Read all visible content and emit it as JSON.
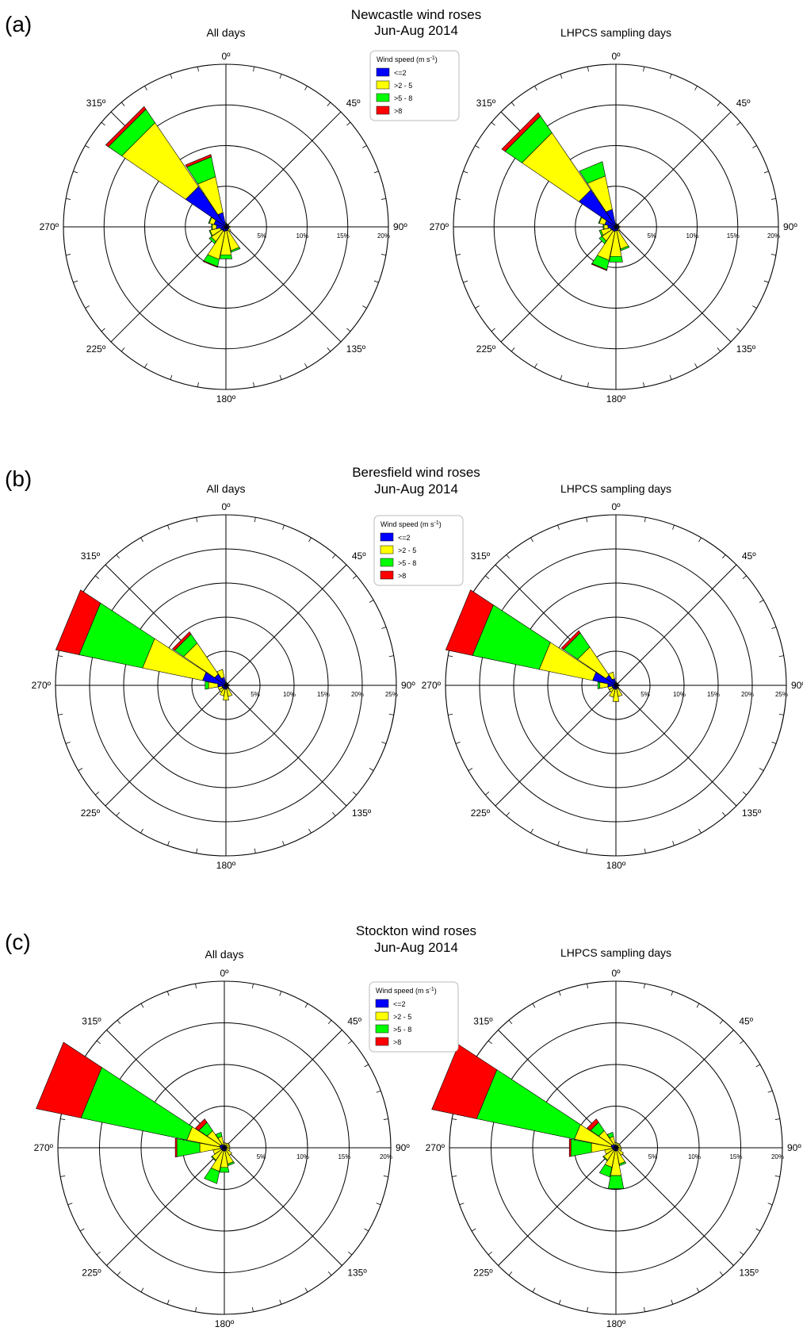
{
  "legend": {
    "title_main": "Wind speed (m s",
    "title_sup": "-1",
    "title_close": ")",
    "items": [
      {
        "label": "<=2",
        "color": "#0000ff"
      },
      {
        "label": ">2 - 5",
        "color": "#ffff00"
      },
      {
        "label": ">5 - 8",
        "color": "#00ff00"
      },
      {
        "label": ">8",
        "color": "#ff0000"
      }
    ]
  },
  "direction_labels": [
    "0º",
    "45º",
    "90º",
    "135º",
    "180º",
    "225º",
    "270º",
    "315º"
  ],
  "chart_data": [
    {
      "type": "wind-rose",
      "panel": "(a)",
      "title": "Newcastle wind roses",
      "period": "Jun-Aug 2014",
      "subtitle": "All days",
      "rings_percent": [
        5,
        10,
        15,
        20
      ],
      "ring_labels": [
        "5%",
        "10%",
        "15%",
        "20%"
      ],
      "directions_deg": [
        0,
        22.5,
        45,
        67.5,
        90,
        112.5,
        135,
        157.5,
        180,
        202.5,
        225,
        247.5,
        270,
        292.5,
        315,
        337.5
      ],
      "series": [
        {
          "name": "<=2",
          "values": [
            0.4,
            0.3,
            0.3,
            0.3,
            0.4,
            0.3,
            0.4,
            0.5,
            0.5,
            0.6,
            0.6,
            0.7,
            1.2,
            1.5,
            6.0,
            1.8
          ]
        },
        {
          "name": ">2 - 5",
          "values": [
            0.1,
            0.1,
            0.1,
            0.1,
            0.1,
            0.1,
            0.3,
            2.5,
            3.0,
            3.5,
            1.6,
            1.3,
            0.5,
            0.6,
            9.5,
            4.5
          ]
        },
        {
          "name": ">5 - 8",
          "values": [
            0.0,
            0.0,
            0.0,
            0.0,
            0.0,
            0.0,
            0.0,
            0.2,
            0.5,
            0.9,
            0.3,
            0.1,
            0.1,
            0.1,
            2.0,
            2.5
          ]
        },
        {
          "name": ">8",
          "values": [
            0.0,
            0.0,
            0.0,
            0.0,
            0.0,
            0.0,
            0.0,
            0.0,
            0.0,
            0.1,
            0.0,
            0.0,
            0.0,
            0.0,
            0.4,
            0.3
          ]
        }
      ]
    },
    {
      "type": "wind-rose",
      "panel": "(a)",
      "subtitle": "LHPCS sampling days",
      "rings_percent": [
        5,
        10,
        15,
        20
      ],
      "ring_labels": [
        "5%",
        "10%",
        "15%",
        "20%"
      ],
      "directions_deg": [
        0,
        22.5,
        45,
        67.5,
        90,
        112.5,
        135,
        157.5,
        180,
        202.5,
        225,
        247.5,
        270,
        292.5,
        315,
        337.5
      ],
      "series": [
        {
          "name": "<=2",
          "values": [
            0.3,
            0.3,
            0.3,
            0.3,
            0.4,
            0.3,
            0.4,
            0.5,
            0.5,
            0.6,
            0.6,
            0.7,
            1.0,
            1.4,
            5.5,
            2.2
          ]
        },
        {
          "name": ">2 - 5",
          "values": [
            0.1,
            0.1,
            0.1,
            0.1,
            0.1,
            0.1,
            0.2,
            2.3,
            3.2,
            3.6,
            1.5,
            1.2,
            0.5,
            0.7,
            8.5,
            4.2
          ]
        },
        {
          "name": ">5 - 8",
          "values": [
            0.0,
            0.0,
            0.0,
            0.0,
            0.0,
            0.0,
            0.0,
            0.2,
            0.7,
            1.2,
            0.4,
            0.2,
            0.1,
            0.1,
            2.5,
            1.8
          ]
        },
        {
          "name": ">8",
          "values": [
            0.0,
            0.0,
            0.0,
            0.0,
            0.0,
            0.0,
            0.0,
            0.0,
            0.0,
            0.1,
            0.0,
            0.0,
            0.0,
            0.0,
            0.5,
            0.0
          ]
        }
      ]
    },
    {
      "type": "wind-rose",
      "panel": "(b)",
      "title": "Beresfield wind roses",
      "period": "Jun-Aug 2014",
      "subtitle": "All days",
      "rings_percent": [
        5,
        10,
        15,
        20,
        25
      ],
      "ring_labels": [
        "5%",
        "10%",
        "15%",
        "20%",
        "25%"
      ],
      "directions_deg": [
        0,
        22.5,
        45,
        67.5,
        90,
        112.5,
        135,
        157.5,
        180,
        202.5,
        225,
        247.5,
        270,
        292.5,
        315,
        337.5
      ],
      "series": [
        {
          "name": "<=2",
          "values": [
            0.4,
            0.3,
            0.3,
            0.3,
            0.4,
            0.3,
            0.4,
            0.5,
            0.6,
            0.6,
            0.6,
            0.6,
            1.2,
            3.5,
            2.0,
            1.2
          ]
        },
        {
          "name": ">2 - 5",
          "values": [
            0.1,
            0.1,
            0.1,
            0.1,
            0.1,
            0.1,
            0.1,
            1.2,
            1.6,
            1.0,
            0.6,
            0.6,
            1.4,
            9.0,
            5.5,
            1.2
          ]
        },
        {
          "name": ">5 - 8",
          "values": [
            0.0,
            0.0,
            0.0,
            0.0,
            0.0,
            0.0,
            0.0,
            0.0,
            0.0,
            0.0,
            0.0,
            0.0,
            0.5,
            9.5,
            1.6,
            0.0
          ]
        },
        {
          "name": ">8",
          "values": [
            0.0,
            0.0,
            0.0,
            0.0,
            0.0,
            0.0,
            0.0,
            0.0,
            0.0,
            0.0,
            0.0,
            0.0,
            0.0,
            3.5,
            0.4,
            0.0
          ]
        }
      ]
    },
    {
      "type": "wind-rose",
      "panel": "(b)",
      "subtitle": "LHPCS sampling days",
      "rings_percent": [
        5,
        10,
        15,
        20,
        25
      ],
      "ring_labels": [
        "5%",
        "10%",
        "15%",
        "20%",
        "25%"
      ],
      "directions_deg": [
        0,
        22.5,
        45,
        67.5,
        90,
        112.5,
        135,
        157.5,
        180,
        202.5,
        225,
        247.5,
        270,
        292.5,
        315,
        337.5
      ],
      "series": [
        {
          "name": "<=2",
          "values": [
            0.4,
            0.3,
            0.3,
            0.3,
            0.4,
            0.3,
            0.4,
            0.5,
            0.6,
            0.6,
            0.6,
            0.6,
            1.2,
            3.5,
            1.8,
            1.0
          ]
        },
        {
          "name": ">2 - 5",
          "values": [
            0.1,
            0.1,
            0.1,
            0.1,
            0.1,
            0.1,
            0.1,
            1.2,
            1.8,
            1.2,
            0.6,
            0.6,
            1.2,
            8.0,
            5.0,
            1.0
          ]
        },
        {
          "name": ">5 - 8",
          "values": [
            0.0,
            0.0,
            0.0,
            0.0,
            0.0,
            0.0,
            0.0,
            0.0,
            0.0,
            0.0,
            0.0,
            0.0,
            0.3,
            10.0,
            2.5,
            0.0
          ]
        },
        {
          "name": ">8",
          "values": [
            0.0,
            0.0,
            0.0,
            0.0,
            0.0,
            0.0,
            0.0,
            0.0,
            0.0,
            0.0,
            0.0,
            0.0,
            0.0,
            4.0,
            0.4,
            0.0
          ]
        }
      ]
    },
    {
      "type": "wind-rose",
      "panel": "(c)",
      "title": "Stockton wind roses",
      "period": "Jun-Aug 2014",
      "subtitle": "All days",
      "rings_percent": [
        5,
        10,
        15,
        20
      ],
      "ring_labels": [
        "5%",
        "10%",
        "15%",
        "20%"
      ],
      "directions_deg": [
        0,
        22.5,
        45,
        67.5,
        90,
        112.5,
        135,
        157.5,
        180,
        202.5,
        225,
        247.5,
        270,
        292.5,
        315,
        337.5
      ],
      "series": [
        {
          "name": "<=2",
          "values": [
            0.3,
            0.3,
            0.3,
            0.3,
            0.3,
            0.3,
            0.3,
            0.4,
            0.4,
            0.4,
            0.4,
            0.4,
            0.5,
            0.6,
            0.5,
            0.4
          ]
        },
        {
          "name": ">2 - 5",
          "values": [
            0.3,
            0.3,
            0.4,
            0.4,
            0.3,
            0.4,
            0.8,
            1.6,
            2.0,
            2.5,
            1.4,
            1.0,
            2.5,
            4.0,
            2.0,
            1.0
          ]
        },
        {
          "name": ">5 - 8",
          "values": [
            0.0,
            0.0,
            0.0,
            0.0,
            0.0,
            0.0,
            0.0,
            0.2,
            0.6,
            1.5,
            0.1,
            0.0,
            2.8,
            13.0,
            1.2,
            0.5
          ]
        },
        {
          "name": ">8",
          "values": [
            0.0,
            0.0,
            0.0,
            0.0,
            0.0,
            0.0,
            0.0,
            0.0,
            0.0,
            0.0,
            0.0,
            0.0,
            0.2,
            5.5,
            0.5,
            0.0
          ]
        }
      ]
    },
    {
      "type": "wind-rose",
      "panel": "(c)",
      "subtitle": "LHPCS sampling days",
      "rings_percent": [
        5,
        10,
        15,
        20
      ],
      "ring_labels": [
        "5%",
        "10%",
        "15%",
        "20%"
      ],
      "directions_deg": [
        0,
        22.5,
        45,
        67.5,
        90,
        112.5,
        135,
        157.5,
        180,
        202.5,
        225,
        247.5,
        270,
        292.5,
        315,
        337.5
      ],
      "series": [
        {
          "name": "<=2",
          "values": [
            0.3,
            0.3,
            0.3,
            0.3,
            0.3,
            0.3,
            0.3,
            0.4,
            0.4,
            0.4,
            0.4,
            0.4,
            0.5,
            0.6,
            0.5,
            0.4
          ]
        },
        {
          "name": ">2 - 5",
          "values": [
            0.3,
            0.3,
            0.3,
            0.3,
            0.3,
            0.4,
            0.8,
            1.6,
            3.0,
            2.0,
            1.4,
            1.0,
            2.5,
            4.5,
            2.0,
            1.0
          ]
        },
        {
          "name": ">5 - 8",
          "values": [
            0.0,
            0.0,
            0.0,
            0.0,
            0.0,
            0.0,
            0.0,
            0.2,
            1.6,
            1.2,
            0.1,
            0.0,
            2.5,
            12.0,
            1.2,
            0.5
          ]
        },
        {
          "name": ">8",
          "values": [
            0.0,
            0.0,
            0.0,
            0.0,
            0.0,
            0.0,
            0.0,
            0.0,
            0.0,
            0.0,
            0.0,
            0.0,
            0.2,
            5.5,
            0.5,
            0.0
          ]
        }
      ]
    }
  ]
}
